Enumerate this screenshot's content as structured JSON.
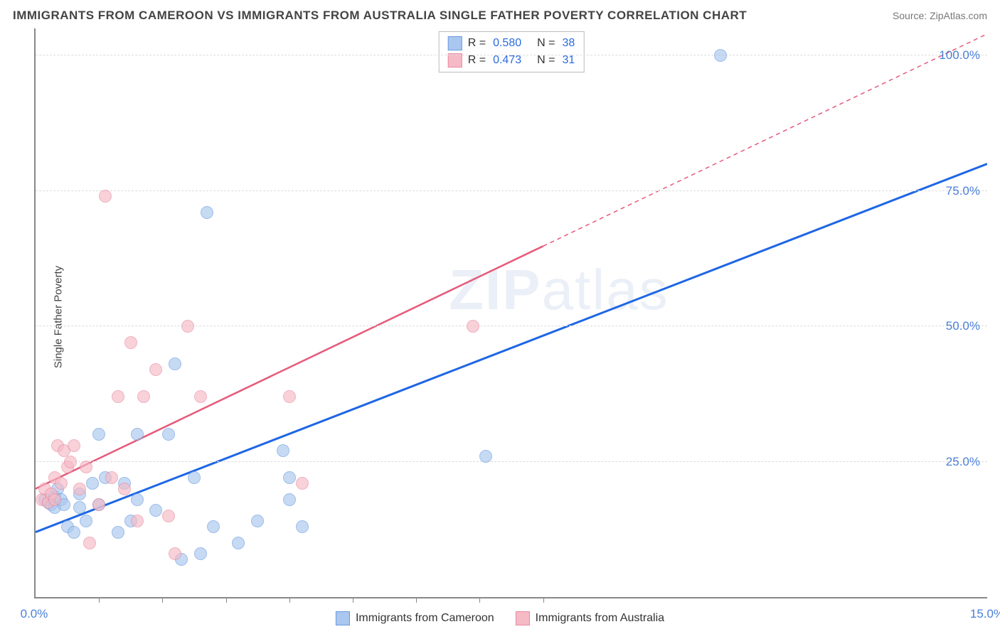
{
  "title": "IMMIGRANTS FROM CAMEROON VS IMMIGRANTS FROM AUSTRALIA SINGLE FATHER POVERTY CORRELATION CHART",
  "source_label": "Source: ZipAtlas.com",
  "y_axis_label": "Single Father Poverty",
  "watermark": {
    "bold": "ZIP",
    "light": "atlas"
  },
  "chart": {
    "type": "scatter",
    "xlim": [
      0,
      15
    ],
    "ylim": [
      0,
      105
    ],
    "x_ticks": [
      0,
      15
    ],
    "x_tick_labels": [
      "0.0%",
      "15.0%"
    ],
    "x_minor_ticks": [
      1,
      2,
      3,
      4,
      5,
      6,
      7,
      8
    ],
    "y_gridlines": [
      25,
      50,
      75,
      100
    ],
    "y_tick_labels": [
      "25.0%",
      "50.0%",
      "75.0%",
      "100.0%"
    ],
    "background_color": "#ffffff",
    "grid_color": "#dddddd",
    "axis_color": "#888888",
    "label_color": "#4a7fd8"
  },
  "series": [
    {
      "id": "cameroon",
      "label": "Immigrants from Cameroon",
      "fill": "#a9c7ef",
      "stroke": "#6b9bde",
      "fill_opacity": 0.65,
      "marker_radius": 9,
      "r_value": "0.580",
      "n_value": "38",
      "trend": {
        "color": "#1e66e5",
        "width": 3,
        "y_at_x0": 12,
        "y_at_x15": 80,
        "style": "solid"
      },
      "points": [
        [
          0.15,
          18
        ],
        [
          0.2,
          17.5
        ],
        [
          0.25,
          17
        ],
        [
          0.3,
          16.5
        ],
        [
          0.3,
          18.5
        ],
        [
          0.35,
          20
        ],
        [
          0.4,
          18
        ],
        [
          0.45,
          17
        ],
        [
          0.5,
          13
        ],
        [
          0.6,
          12
        ],
        [
          0.7,
          19
        ],
        [
          0.7,
          16.5
        ],
        [
          0.8,
          14
        ],
        [
          0.9,
          21
        ],
        [
          1.0,
          17
        ],
        [
          1.0,
          30
        ],
        [
          1.1,
          22
        ],
        [
          1.3,
          12
        ],
        [
          1.4,
          21
        ],
        [
          1.5,
          14
        ],
        [
          1.6,
          18
        ],
        [
          1.6,
          30
        ],
        [
          1.9,
          16
        ],
        [
          2.1,
          30
        ],
        [
          2.2,
          43
        ],
        [
          2.3,
          7
        ],
        [
          2.5,
          22
        ],
        [
          2.6,
          8
        ],
        [
          2.7,
          71
        ],
        [
          2.8,
          13
        ],
        [
          3.2,
          10
        ],
        [
          3.5,
          14
        ],
        [
          3.9,
          27
        ],
        [
          4.0,
          22
        ],
        [
          4.0,
          18
        ],
        [
          4.2,
          13
        ],
        [
          7.1,
          26
        ],
        [
          10.8,
          100
        ]
      ]
    },
    {
      "id": "australia",
      "label": "Immigrants from Australia",
      "fill": "#f5bac6",
      "stroke": "#e88ba0",
      "fill_opacity": 0.65,
      "marker_radius": 9,
      "r_value": "0.473",
      "n_value": "31",
      "trend": {
        "color": "#e65a7a",
        "width": 2.5,
        "y_at_x0": 20,
        "y_at_x15": 104,
        "style": "solid-then-dashed",
        "solid_until_x": 8
      },
      "points": [
        [
          0.1,
          18
        ],
        [
          0.15,
          20
        ],
        [
          0.2,
          17.5
        ],
        [
          0.25,
          19
        ],
        [
          0.3,
          18
        ],
        [
          0.3,
          22
        ],
        [
          0.35,
          28
        ],
        [
          0.4,
          21
        ],
        [
          0.45,
          27
        ],
        [
          0.5,
          24
        ],
        [
          0.55,
          25
        ],
        [
          0.6,
          28
        ],
        [
          0.7,
          20
        ],
        [
          0.8,
          24
        ],
        [
          0.85,
          10
        ],
        [
          1.0,
          17
        ],
        [
          1.1,
          74
        ],
        [
          1.2,
          22
        ],
        [
          1.3,
          37
        ],
        [
          1.4,
          20
        ],
        [
          1.5,
          47
        ],
        [
          1.6,
          14
        ],
        [
          1.7,
          37
        ],
        [
          1.9,
          42
        ],
        [
          2.1,
          15
        ],
        [
          2.2,
          8
        ],
        [
          2.4,
          50
        ],
        [
          2.6,
          37
        ],
        [
          4.0,
          37
        ],
        [
          4.2,
          21
        ],
        [
          6.9,
          50
        ]
      ]
    }
  ],
  "legend_top_prefix_r": "R =",
  "legend_top_prefix_n": "N ="
}
